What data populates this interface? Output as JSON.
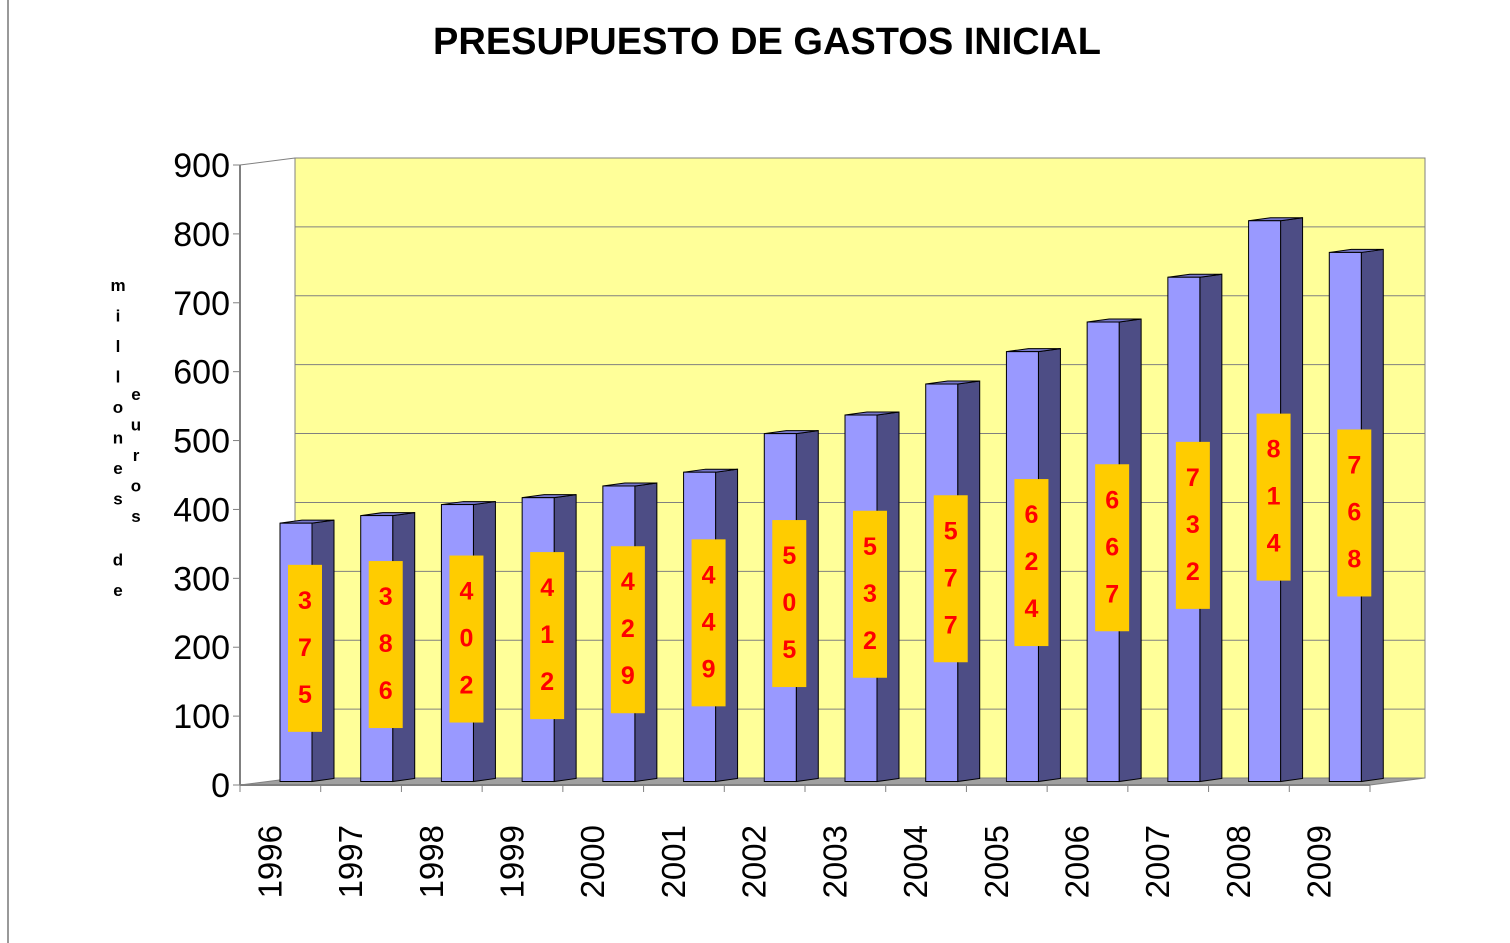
{
  "chart_data": {
    "type": "bar3d",
    "title": "PRESUPUESTO DE GASTOS INICIAL",
    "y_label": "millones de euros",
    "categories": [
      "1996",
      "1997",
      "1998",
      "1999",
      "2000",
      "2001",
      "2002",
      "2003",
      "2004",
      "2005",
      "2006",
      "2007",
      "2008",
      "2009"
    ],
    "values": [
      375,
      386,
      402,
      412,
      429,
      449,
      505,
      532,
      577,
      624,
      667,
      732,
      814,
      768
    ],
    "color": "#9999ff",
    "side_color": "#4d4d85",
    "label_box_color": "#ffcc00",
    "label_text_color": "#ff0000",
    "wall_color": "#ffff99",
    "ylim": [
      0,
      900
    ],
    "yticks": [
      0,
      100,
      200,
      300,
      400,
      500,
      600,
      700,
      800,
      900
    ],
    "grid": true
  }
}
